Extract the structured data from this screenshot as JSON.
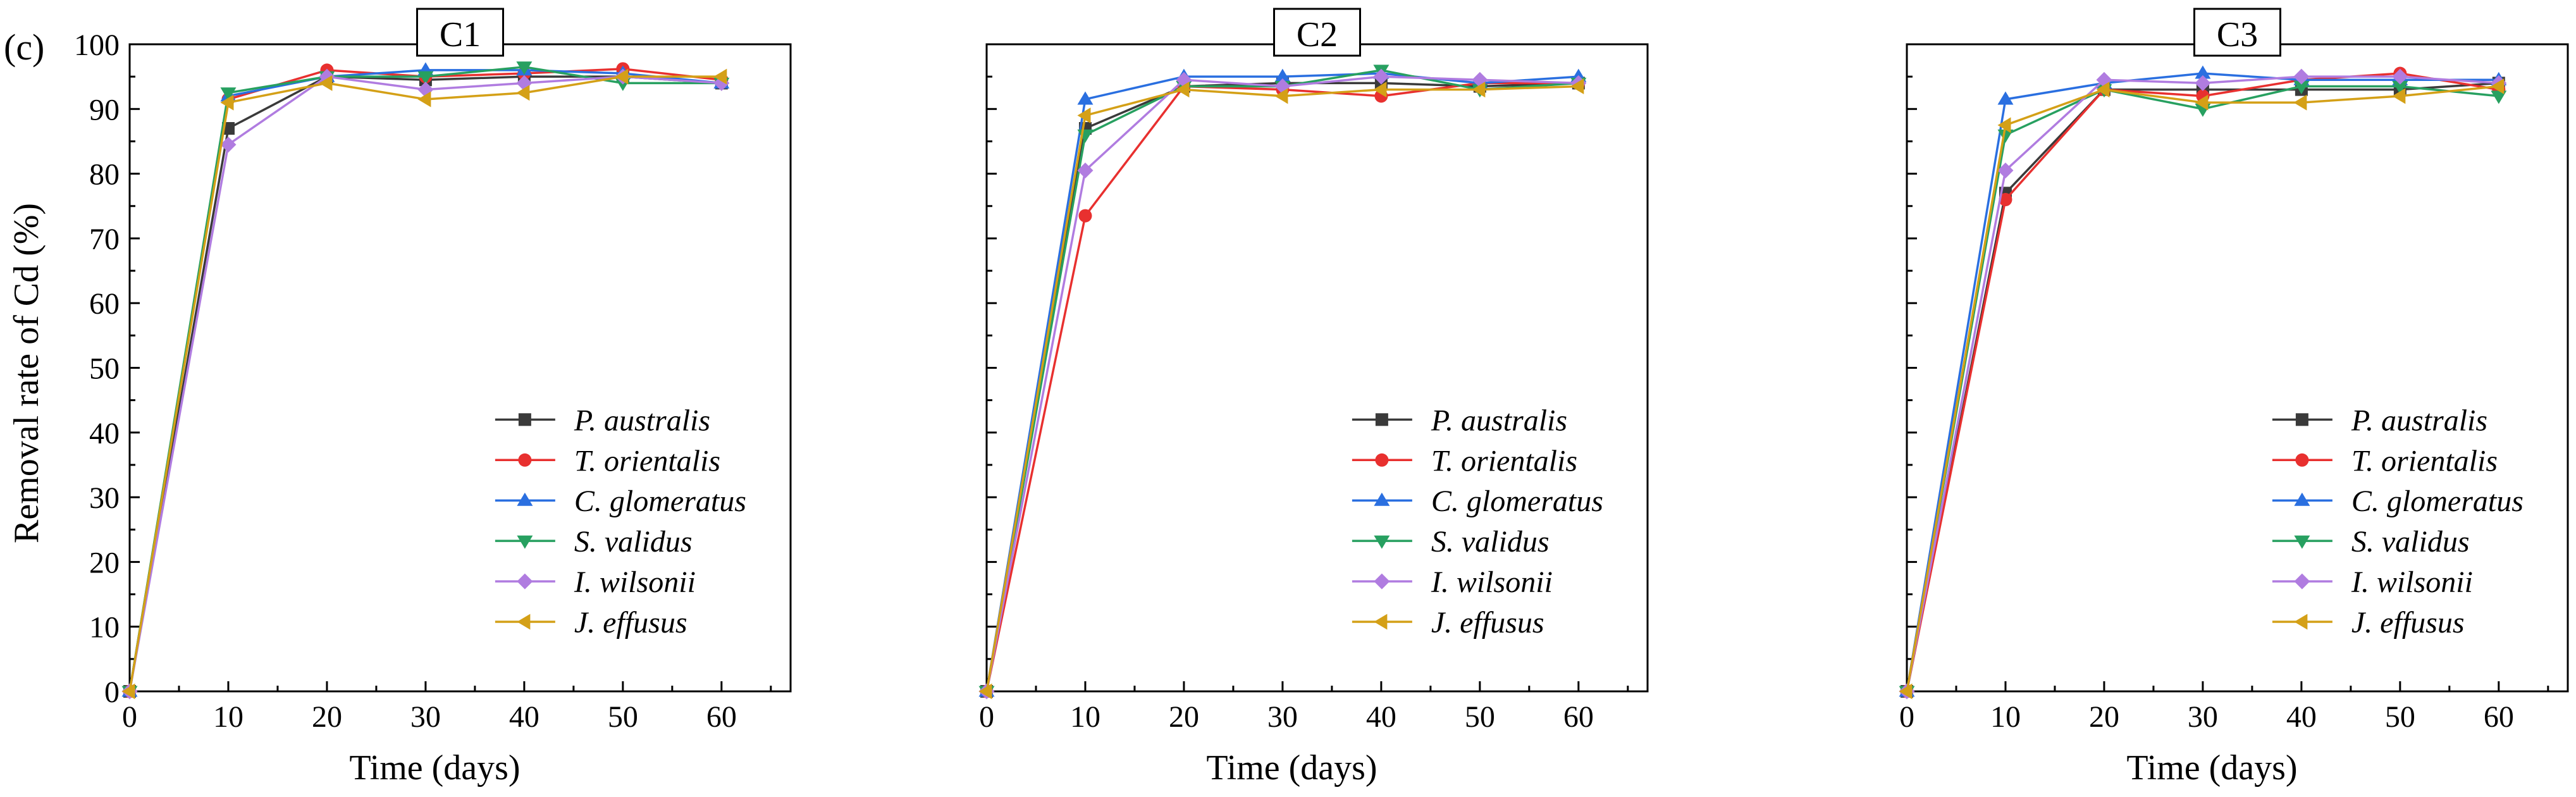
{
  "figure_label": "(c)",
  "y_axis_label": "Removal rate of Cd (%)",
  "colors": {
    "P. australis": "#3a3a3a",
    "T. orientalis": "#e8302f",
    "C. glomeratus": "#2a6fe0",
    "S. validus": "#27a060",
    "I. wilsonii": "#b07ce0",
    "J. effusus": "#d4a017"
  },
  "markers": {
    "P. australis": "square",
    "T. orientalis": "circle",
    "C. glomeratus": "triangle-up",
    "S. validus": "triangle-down",
    "I. wilsonii": "diamond",
    "J. effusus": "triangle-left"
  },
  "chart_data": [
    {
      "type": "line",
      "title": "C1",
      "xlabel": "Time (days)",
      "ylabel": "Removal rate of Cd (%)",
      "x": [
        0,
        10,
        20,
        30,
        40,
        50,
        60
      ],
      "xticks": [
        "0",
        "10",
        "20",
        "30",
        "40",
        "50",
        "60"
      ],
      "yticks": [
        "0",
        "10",
        "20",
        "30",
        "40",
        "50",
        "60",
        "70",
        "80",
        "90",
        "100"
      ],
      "xlim": [
        0,
        67
      ],
      "ylim": [
        0,
        100
      ],
      "legend_position": "bottom-right",
      "series": [
        {
          "name": "P. australis",
          "values": [
            0,
            87,
            95,
            94.5,
            95,
            95,
            94
          ]
        },
        {
          "name": "T. orientalis",
          "values": [
            0,
            91.5,
            96,
            95,
            95.5,
            96.2,
            94.5
          ]
        },
        {
          "name": "C. glomeratus",
          "values": [
            0,
            92,
            95,
            96,
            96,
            95.5,
            94
          ]
        },
        {
          "name": "S. validus",
          "values": [
            0,
            92.5,
            95,
            95,
            96.5,
            94,
            94
          ]
        },
        {
          "name": "I. wilsonii",
          "values": [
            0,
            84.5,
            95,
            93,
            94,
            95,
            94
          ]
        },
        {
          "name": "J. effusus",
          "values": [
            0,
            91,
            94,
            91.5,
            92.5,
            95,
            95
          ]
        }
      ]
    },
    {
      "type": "line",
      "title": "C2",
      "xlabel": "Time (days)",
      "ylabel": "",
      "x": [
        0,
        10,
        20,
        30,
        40,
        50,
        60
      ],
      "xticks": [
        "0",
        "10",
        "20",
        "30",
        "40",
        "50",
        "60"
      ],
      "yticks": [],
      "xlim": [
        0,
        67
      ],
      "ylim": [
        0,
        100
      ],
      "legend_position": "bottom-right",
      "series": [
        {
          "name": "P. australis",
          "values": [
            0,
            87,
            93.5,
            94,
            94,
            93.5,
            94
          ]
        },
        {
          "name": "T. orientalis",
          "values": [
            0,
            73.5,
            93.5,
            93,
            92,
            94,
            94
          ]
        },
        {
          "name": "C. glomeratus",
          "values": [
            0,
            91.5,
            95,
            95,
            95.5,
            94,
            95
          ]
        },
        {
          "name": "S. validus",
          "values": [
            0,
            86,
            93.5,
            93.5,
            96,
            93,
            94
          ]
        },
        {
          "name": "I. wilsonii",
          "values": [
            0,
            80.5,
            94.5,
            93.5,
            95,
            94.5,
            94
          ]
        },
        {
          "name": "J. effusus",
          "values": [
            0,
            89,
            93,
            92,
            93,
            93,
            93.5
          ]
        }
      ]
    },
    {
      "type": "line",
      "title": "C3",
      "xlabel": "Time (days)",
      "ylabel": "",
      "x": [
        0,
        10,
        20,
        30,
        40,
        50,
        60
      ],
      "xticks": [
        "0",
        "10",
        "20",
        "30",
        "40",
        "50",
        "60"
      ],
      "yticks": [],
      "xlim": [
        0,
        67
      ],
      "ylim": [
        0,
        100
      ],
      "legend_position": "bottom-right",
      "series": [
        {
          "name": "P. australis",
          "values": [
            0,
            77,
            93,
            93,
            93,
            93,
            94
          ]
        },
        {
          "name": "T. orientalis",
          "values": [
            0,
            76,
            93,
            92,
            94.5,
            95.5,
            93
          ]
        },
        {
          "name": "C. glomeratus",
          "values": [
            0,
            91.5,
            94,
            95.5,
            94.5,
            94.5,
            94.5
          ]
        },
        {
          "name": "S. validus",
          "values": [
            0,
            86,
            93,
            90,
            93.5,
            93.5,
            92
          ]
        },
        {
          "name": "I. wilsonii",
          "values": [
            0,
            80.5,
            94.5,
            94,
            95,
            95,
            94
          ]
        },
        {
          "name": "J. effusus",
          "values": [
            0,
            87.5,
            93,
            91,
            91,
            92,
            93.5
          ]
        }
      ]
    }
  ]
}
